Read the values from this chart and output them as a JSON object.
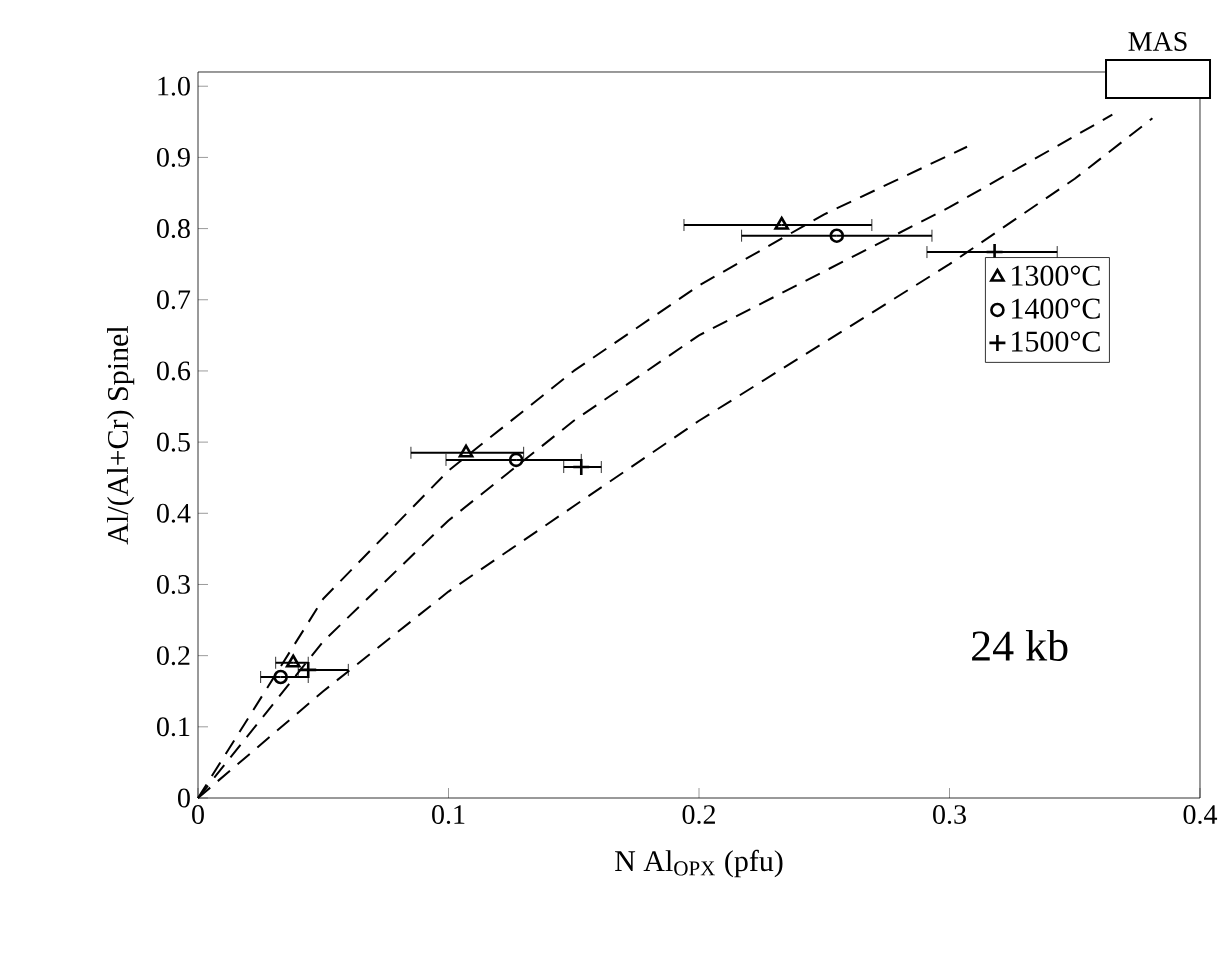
{
  "chart_data": {
    "type": "scatter",
    "xlabel": "N Al$_{OPX}$ (pfu)",
    "ylabel": "Al/(Al+Cr) Spinel",
    "xlim": [
      0,
      0.4
    ],
    "ylim": [
      0,
      1.02
    ],
    "xticks": [
      0,
      0.1,
      0.2,
      0.3,
      0.4
    ],
    "yticks": [
      0,
      0.1,
      0.2,
      0.3,
      0.4,
      0.5,
      0.6,
      0.7,
      0.8,
      0.9,
      {
        "value": 1,
        "label": "1.0"
      }
    ],
    "legend": "right",
    "grid": false,
    "annotations": [
      "24 kb",
      "MAS"
    ],
    "series": [
      {
        "name": "1300°C",
        "color": "#000000",
        "marker": "triangle",
        "x": [
          0.038,
          0.107,
          0.233
        ],
        "values": [
          0.19,
          0.485,
          0.805
        ],
        "xerrors": [
          [
            0.031,
            0.044
          ],
          [
            0.085,
            0.13
          ],
          [
            0.194,
            0.269
          ]
        ]
      },
      {
        "name": "1400°C",
        "color": "#000000",
        "marker": "circle",
        "x": [
          0.033,
          0.127,
          0.255
        ],
        "values": [
          0.17,
          0.475,
          0.79
        ],
        "xerrors": [
          [
            0.025,
            0.044
          ],
          [
            0.099,
            0.153
          ],
          [
            0.217,
            0.293
          ]
        ]
      },
      {
        "name": "1500°C",
        "color": "#000000",
        "marker": "cross",
        "x": [
          0.044,
          0.153,
          0.318
        ],
        "values": [
          0.18,
          0.465,
          0.767
        ],
        "xerrors": [
          [
            0.04,
            0.06
          ],
          [
            0.146,
            0.161
          ],
          [
            0.291,
            0.343
          ]
        ]
      },
      {
        "type": "line",
        "color": "#000000",
        "marker": "none",
        "line_style": "dashed",
        "x": [
          0,
          0.05,
          0.1,
          0.15,
          0.2,
          0.25,
          0.307
        ],
        "values": [
          0,
          0.28,
          0.46,
          0.6,
          0.72,
          0.82,
          0.915
        ]
      },
      {
        "type": "line",
        "color": "#000000",
        "marker": "none",
        "line_style": "dashed",
        "x": [
          0,
          0.05,
          0.1,
          0.15,
          0.2,
          0.25,
          0.3,
          0.365
        ],
        "values": [
          0,
          0.22,
          0.39,
          0.53,
          0.65,
          0.74,
          0.83,
          0.96
        ]
      },
      {
        "type": "line",
        "color": "#000000",
        "marker": "none",
        "line_style": "dashed",
        "x": [
          0,
          0.05,
          0.1,
          0.15,
          0.2,
          0.25,
          0.3,
          0.35,
          0.381
        ],
        "values": [
          0,
          0.15,
          0.29,
          0.41,
          0.53,
          0.64,
          0.75,
          0.87,
          0.955
        ]
      }
    ]
  }
}
